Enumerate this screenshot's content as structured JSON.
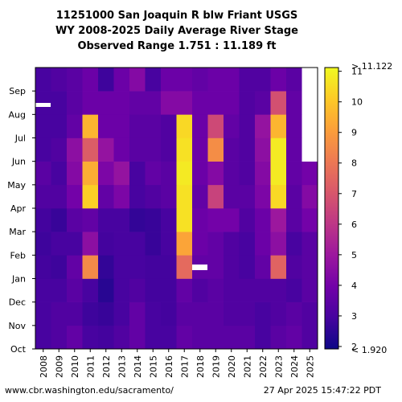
{
  "title_lines": [
    "11251000 San Joaquin R blw Friant USGS",
    "WY 2008-2025 Daily Average River Stage",
    "Observed Range 1.751 : 11.189 ft"
  ],
  "footer": {
    "left": "www.cbr.washington.edu/sacramento/",
    "right": "27 Apr 2025 15:47:22 PDT"
  },
  "chart_data": {
    "type": "heatmap",
    "x_categories": [
      "2008",
      "2009",
      "2010",
      "2011",
      "2012",
      "2013",
      "2014",
      "2015",
      "2016",
      "2017",
      "2018",
      "2019",
      "2020",
      "2021",
      "2022",
      "2023",
      "2024",
      "2025"
    ],
    "y_categories": [
      "Oct",
      "Nov",
      "Dec",
      "Jan",
      "Feb",
      "Mar",
      "Apr",
      "May",
      "Jun",
      "Jul",
      "Aug",
      "Sep"
    ],
    "values": [
      [
        3.0,
        3.2,
        3.6,
        3.0,
        2.9,
        3.2,
        3.6,
        3.0,
        3.0,
        3.6,
        3.4,
        3.4,
        3.4,
        3.4,
        3.0,
        3.4,
        3.6,
        3.2
      ],
      [
        3.0,
        3.2,
        3.2,
        2.8,
        2.7,
        3.0,
        3.6,
        3.0,
        2.9,
        3.4,
        3.4,
        3.4,
        3.2,
        3.2,
        3.0,
        3.2,
        3.4,
        3.2
      ],
      [
        3.0,
        3.0,
        3.4,
        3.0,
        2.4,
        3.0,
        3.2,
        2.9,
        2.9,
        3.6,
        3.2,
        3.4,
        3.2,
        3.2,
        3.2,
        3.2,
        3.0,
        3.4
      ],
      [
        2.9,
        2.8,
        3.6,
        8.5,
        2.6,
        3.0,
        3.0,
        2.9,
        2.9,
        7.6,
        3.6,
        3.6,
        3.2,
        3.0,
        3.6,
        7.4,
        3.2,
        3.4
      ],
      [
        2.8,
        3.0,
        3.0,
        4.6,
        2.9,
        3.0,
        3.0,
        2.7,
        3.0,
        9.2,
        3.8,
        3.6,
        3.2,
        3.0,
        3.8,
        4.6,
        3.0,
        3.4
      ],
      [
        2.9,
        2.7,
        3.4,
        3.6,
        3.0,
        3.0,
        2.6,
        2.7,
        3.0,
        10.6,
        3.8,
        4.0,
        4.0,
        3.2,
        3.8,
        5.0,
        3.4,
        4.0
      ],
      [
        3.2,
        3.2,
        4.0,
        10.2,
        3.6,
        4.2,
        3.0,
        3.2,
        3.4,
        10.6,
        3.6,
        6.4,
        3.4,
        3.4,
        4.2,
        10.4,
        3.4,
        4.4
      ],
      [
        3.4,
        3.0,
        4.4,
        9.4,
        4.2,
        4.8,
        3.0,
        3.6,
        3.4,
        10.8,
        3.8,
        4.4,
        3.4,
        3.2,
        4.4,
        10.8,
        3.6,
        4.0
      ],
      [
        3.0,
        3.2,
        4.6,
        7.2,
        4.8,
        3.8,
        3.4,
        3.4,
        3.2,
        10.6,
        3.8,
        8.6,
        3.4,
        3.2,
        4.6,
        10.8,
        3.6,
        null
      ],
      [
        3.0,
        3.0,
        3.6,
        9.6,
        3.8,
        3.8,
        3.4,
        3.4,
        3.2,
        10.4,
        3.8,
        6.6,
        3.6,
        3.2,
        4.8,
        9.6,
        3.6,
        null
      ],
      [
        3.0,
        3.0,
        3.4,
        3.8,
        3.8,
        3.8,
        3.6,
        3.6,
        4.4,
        4.4,
        3.8,
        3.8,
        3.8,
        3.2,
        3.4,
        6.8,
        3.6,
        null
      ],
      [
        3.0,
        3.2,
        3.4,
        3.8,
        2.8,
        3.8,
        4.4,
        3.0,
        3.8,
        3.8,
        3.6,
        3.8,
        3.8,
        3.2,
        3.2,
        3.8,
        3.4,
        null
      ]
    ],
    "colorbar": {
      "min": 1.92,
      "max": 11.122,
      "ticks": [
        2,
        3,
        4,
        5,
        6,
        7,
        8,
        9,
        10,
        11
      ],
      "min_label": "< 1.920",
      "max_label": "> 11.122",
      "colormap": "plasma"
    },
    "colors": {
      "missing": "#ffffff"
    }
  }
}
